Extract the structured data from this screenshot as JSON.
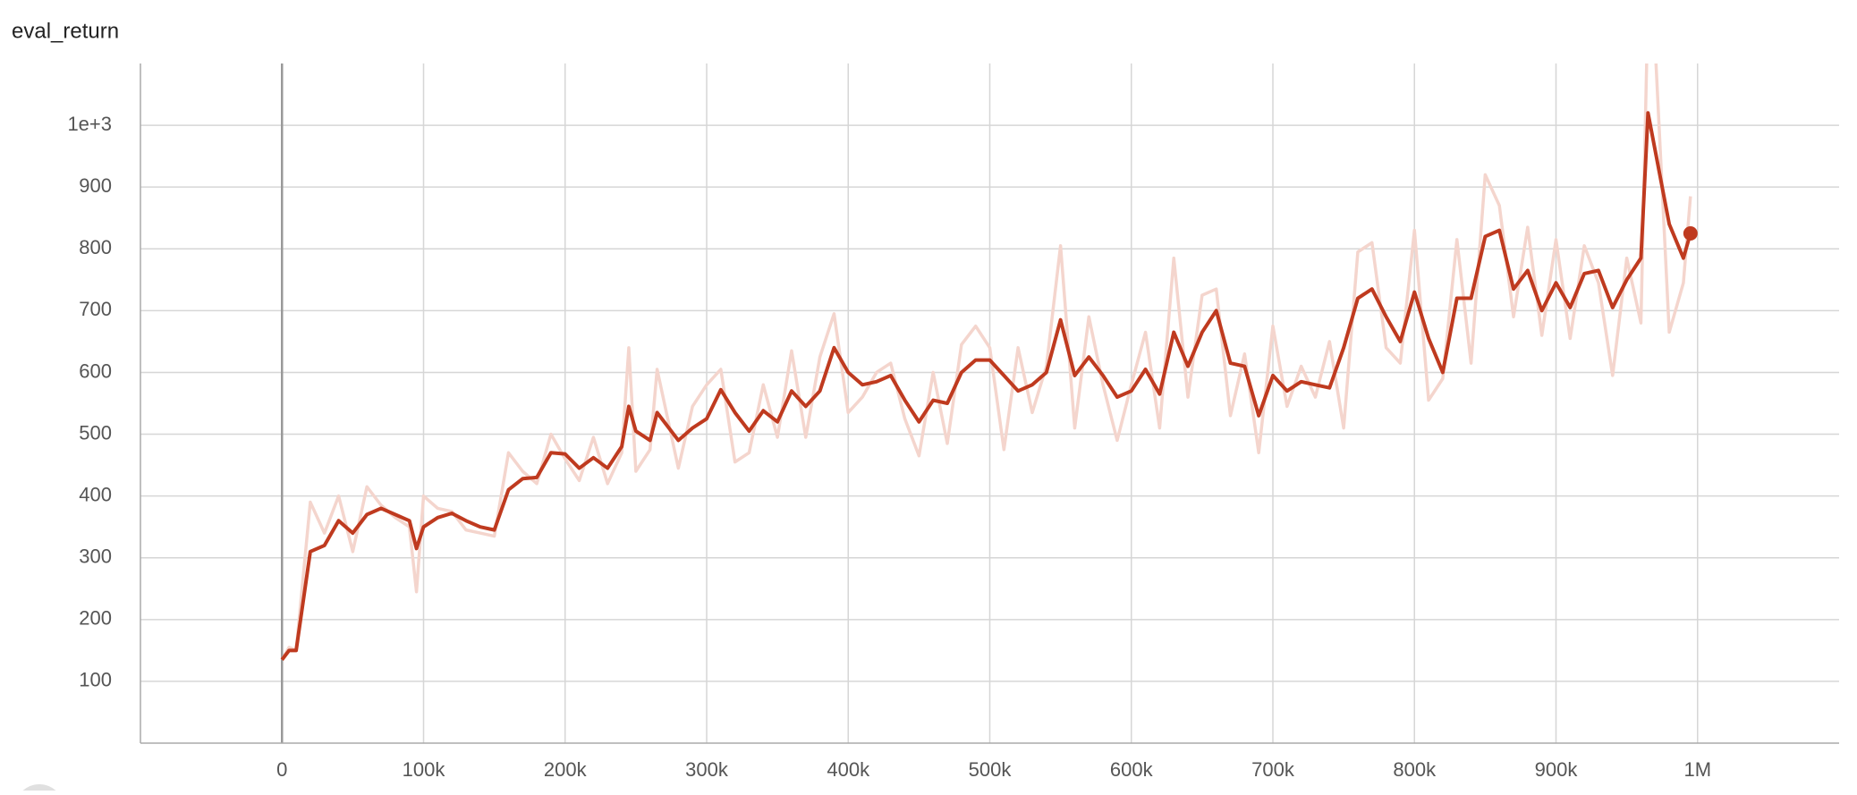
{
  "chart_data": {
    "type": "line",
    "title": "eval_return",
    "x": [
      0,
      5000,
      10000,
      20000,
      30000,
      40000,
      50000,
      60000,
      70000,
      80000,
      90000,
      95000,
      100000,
      110000,
      120000,
      130000,
      140000,
      150000,
      160000,
      170000,
      180000,
      190000,
      200000,
      210000,
      220000,
      230000,
      240000,
      245000,
      250000,
      260000,
      265000,
      280000,
      290000,
      300000,
      310000,
      320000,
      330000,
      340000,
      350000,
      360000,
      370000,
      380000,
      390000,
      400000,
      410000,
      420000,
      430000,
      440000,
      450000,
      460000,
      470000,
      480000,
      490000,
      500000,
      510000,
      520000,
      530000,
      540000,
      550000,
      560000,
      570000,
      580000,
      590000,
      600000,
      610000,
      620000,
      630000,
      640000,
      650000,
      660000,
      670000,
      680000,
      690000,
      700000,
      710000,
      720000,
      730000,
      740000,
      750000,
      760000,
      770000,
      780000,
      790000,
      800000,
      810000,
      820000,
      830000,
      840000,
      850000,
      860000,
      870000,
      880000,
      890000,
      900000,
      910000,
      920000,
      930000,
      940000,
      950000,
      960000,
      965000,
      970000,
      980000,
      990000,
      995000
    ],
    "series": [
      {
        "color": "#f4d5cd",
        "values": [
          135,
          155,
          150,
          390,
          340,
          400,
          310,
          415,
          385,
          365,
          350,
          245,
          400,
          380,
          375,
          345,
          340,
          335,
          470,
          440,
          420,
          500,
          460,
          425,
          495,
          420,
          470,
          640,
          440,
          475,
          605,
          445,
          545,
          580,
          605,
          455,
          470,
          580,
          495,
          635,
          495,
          625,
          695,
          535,
          560,
          600,
          615,
          525,
          465,
          600,
          485,
          645,
          675,
          640,
          475,
          640,
          535,
          610,
          805,
          510,
          690,
          580,
          490,
          580,
          665,
          510,
          785,
          560,
          725,
          735,
          530,
          630,
          470,
          675,
          545,
          610,
          560,
          650,
          510,
          795,
          810,
          640,
          615,
          830,
          555,
          590,
          815,
          615,
          920,
          870,
          690,
          835,
          660,
          815,
          655,
          805,
          745,
          595,
          785,
          680,
          1200,
          1130,
          665,
          745,
          885
        ]
      },
      {
        "color": "#bf3a1f",
        "values": [
          135,
          150,
          150,
          310,
          320,
          360,
          340,
          370,
          380,
          370,
          360,
          315,
          350,
          365,
          372,
          360,
          350,
          345,
          410,
          428,
          430,
          470,
          468,
          445,
          462,
          445,
          480,
          545,
          505,
          490,
          535,
          490,
          510,
          525,
          572,
          535,
          505,
          538,
          520,
          570,
          545,
          570,
          640,
          600,
          580,
          585,
          595,
          555,
          520,
          555,
          550,
          600,
          620,
          620,
          595,
          570,
          580,
          600,
          685,
          595,
          625,
          595,
          560,
          570,
          605,
          565,
          665,
          610,
          665,
          700,
          615,
          610,
          530,
          595,
          570,
          585,
          580,
          575,
          640,
          720,
          735,
          690,
          650,
          730,
          655,
          600,
          720,
          720,
          820,
          830,
          735,
          765,
          700,
          745,
          705,
          760,
          765,
          705,
          750,
          785,
          1020,
          960,
          840,
          785,
          825
        ]
      }
    ],
    "xlim": [
      -100000,
      1100000
    ],
    "xticks": [
      0,
      {
        "value": 100000,
        "label": "100k"
      },
      {
        "value": 200000,
        "label": "200k"
      },
      {
        "value": 300000,
        "label": "300k"
      },
      {
        "value": 400000,
        "label": "400k"
      },
      {
        "value": 500000,
        "label": "500k"
      },
      {
        "value": 600000,
        "label": "600k"
      },
      {
        "value": 700000,
        "label": "700k"
      },
      {
        "value": 800000,
        "label": "800k"
      },
      {
        "value": 900000,
        "label": "900k"
      },
      {
        "value": 1000000,
        "label": "1M"
      }
    ],
    "ylim": [
      0,
      1100
    ],
    "yticks": [
      100,
      200,
      300,
      400,
      500,
      600,
      700,
      800,
      900,
      {
        "value": 1000,
        "label": "1e+3"
      }
    ],
    "grid": true
  }
}
